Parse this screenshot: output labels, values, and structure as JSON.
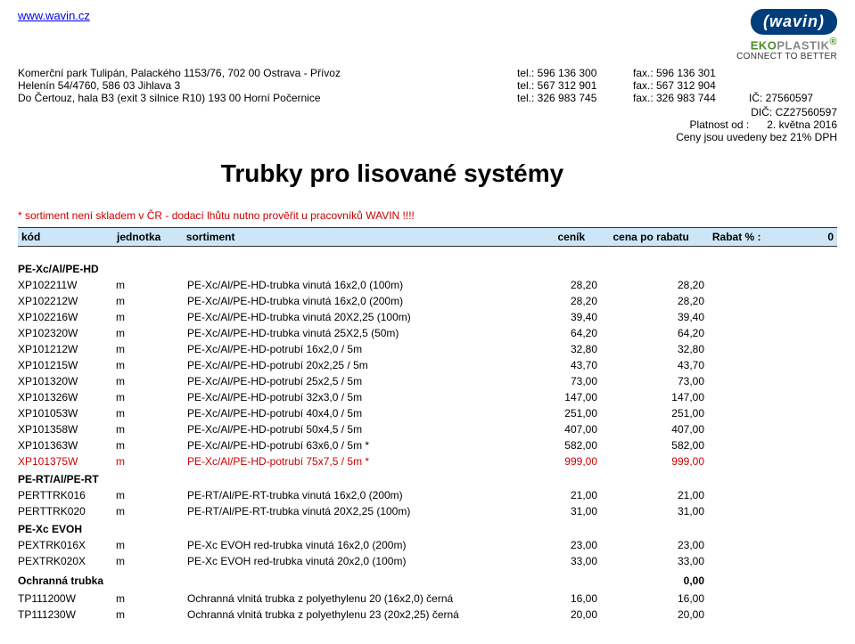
{
  "website": "www.wavin.cz",
  "logos": {
    "wavin": "wavin",
    "eko": "EKO",
    "plastik": "PLASTIK",
    "tagline": "CONNECT TO BETTER",
    "reg": "®"
  },
  "addresses": [
    {
      "addr": "Komerční park Tulipán, Palackého 1153/76, 702 00 Ostrava - Přívoz",
      "tel": "tel.: 596 136 300",
      "fax": "fax.: 596 136 301",
      "right": ""
    },
    {
      "addr": "Helenín 54/4760, 586 03 Jihlava 3",
      "tel": "tel.: 567 312 901",
      "fax": "fax.: 567 312 904",
      "right": ""
    },
    {
      "addr": "Do Čertouz, hala B3 (exit 3 silnice R10) 193 00  Horní Počernice",
      "tel": "tel.: 326 983 745",
      "fax": "fax.: 326 983 744",
      "right": "IČ: 27560597"
    }
  ],
  "dic": "DIČ: CZ27560597",
  "validity_label": "Platnost od :",
  "validity_date": "2. května 2016",
  "vat_note": "Ceny jsou uvedeny bez 21% DPH",
  "title": "Trubky pro lisované systémy",
  "red_note": "*  sortiment není skladem v ČR - dodací lhůtu nutno prověřit u pracovníků WAVIN !!!!",
  "header": {
    "kod": "kód",
    "jednotka": "jednotka",
    "sortiment": "sortiment",
    "cenik": "ceník",
    "cena": "cena po rabatu",
    "rabat_label": "Rabat % :",
    "rabat_val": "0"
  },
  "sections": [
    {
      "name": "PE-Xc/Al/PE-HD",
      "extra_right": "",
      "rows": [
        {
          "kod": "XP102211W",
          "j": "m",
          "s": "PE-Xc/Al/PE-HD-trubka vinutá 16x2,0 (100m)",
          "c": "28,20",
          "p": "28,20",
          "red": false
        },
        {
          "kod": "XP102212W",
          "j": "m",
          "s": "PE-Xc/Al/PE-HD-trubka vinutá 16x2,0 (200m)",
          "c": "28,20",
          "p": "28,20",
          "red": false
        },
        {
          "kod": "XP102216W",
          "j": "m",
          "s": "PE-Xc/Al/PE-HD-trubka vinutá 20X2,25 (100m)",
          "c": "39,40",
          "p": "39,40",
          "red": false
        },
        {
          "kod": "XP102320W",
          "j": "m",
          "s": "PE-Xc/Al/PE-HD-trubka vinutá 25X2,5 (50m)",
          "c": "64,20",
          "p": "64,20",
          "red": false
        },
        {
          "kod": "XP101212W",
          "j": "m",
          "s": "PE-Xc/Al/PE-HD-potrubí 16x2,0 / 5m",
          "c": "32,80",
          "p": "32,80",
          "red": false
        },
        {
          "kod": "XP101215W",
          "j": "m",
          "s": "PE-Xc/Al/PE-HD-potrubí 20x2,25 / 5m",
          "c": "43,70",
          "p": "43,70",
          "red": false
        },
        {
          "kod": "XP101320W",
          "j": "m",
          "s": "PE-Xc/Al/PE-HD-potrubí 25x2,5 / 5m",
          "c": "73,00",
          "p": "73,00",
          "red": false
        },
        {
          "kod": "XP101326W",
          "j": "m",
          "s": "PE-Xc/Al/PE-HD-potrubí 32x3,0 / 5m",
          "c": "147,00",
          "p": "147,00",
          "red": false
        },
        {
          "kod": "XP101053W",
          "j": "m",
          "s": "PE-Xc/Al/PE-HD-potrubí 40x4,0 / 5m",
          "c": "251,00",
          "p": "251,00",
          "red": false
        },
        {
          "kod": "XP101358W",
          "j": "m",
          "s": "PE-Xc/Al/PE-HD-potrubí 50x4,5 / 5m",
          "c": "407,00",
          "p": "407,00",
          "red": false
        },
        {
          "kod": "XP101363W",
          "j": "m",
          "s": "PE-Xc/Al/PE-HD-potrubí 63x6,0 / 5m  *",
          "c": "582,00",
          "p": "582,00",
          "red": false
        },
        {
          "kod": "XP101375W",
          "j": "m",
          "s": "PE-Xc/Al/PE-HD-potrubí 75x7,5 / 5m  *",
          "c": "999,00",
          "p": "999,00",
          "red": true
        }
      ]
    },
    {
      "name": "PE-RT/Al/PE-RT",
      "extra_right": "",
      "rows": [
        {
          "kod": "PERTTRK016",
          "j": "m",
          "s": "PE-RT/Al/PE-RT-trubka vinutá 16x2,0 (200m)",
          "c": "21,00",
          "p": "21,00",
          "red": false
        },
        {
          "kod": "PERTTRK020",
          "j": "m",
          "s": "PE-RT/Al/PE-RT-trubka vinutá 20X2,25 (100m)",
          "c": "31,00",
          "p": "31,00",
          "red": false
        }
      ]
    },
    {
      "name": "PE-Xc EVOH",
      "extra_right": "",
      "rows": [
        {
          "kod": "PEXTRK016X",
          "j": "m",
          "s": "PE-Xc EVOH red-trubka vinutá 16x2,0 (200m)",
          "c": "23,00",
          "p": "23,00",
          "red": false
        },
        {
          "kod": "PEXTRK020X",
          "j": "m",
          "s": "PE-Xc EVOH red-trubka vinutá 20x2,0 (100m)",
          "c": "33,00",
          "p": "33,00",
          "red": false
        }
      ]
    },
    {
      "name": "Ochranná trubka",
      "extra_right": "0,00",
      "rows": [
        {
          "kod": "TP111200W",
          "j": "m",
          "s": "Ochranná vlnitá trubka z polyethylenu 20 (16x2,0) černá",
          "c": "16,00",
          "p": "16,00",
          "red": false
        },
        {
          "kod": "TP111230W",
          "j": "m",
          "s": "Ochranná vlnitá trubka z polyethylenu 23 (20x2,25) černá",
          "c": "20,00",
          "p": "20,00",
          "red": false
        }
      ]
    }
  ]
}
